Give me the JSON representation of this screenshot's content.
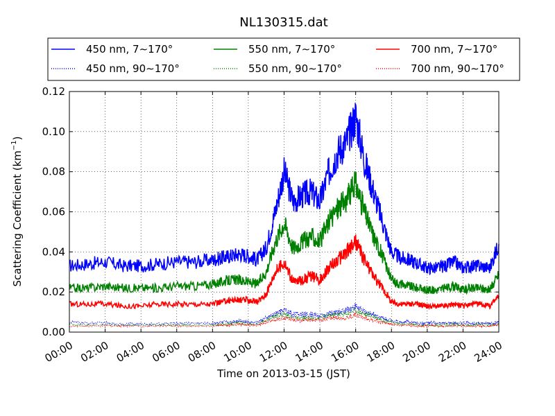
{
  "chart_data": {
    "type": "line",
    "title": "NL130315.dat",
    "xlabel": "Time on 2013-03-15 (JST)",
    "ylabel": "Scattering Coefficient (km",
    "ylabel_sup": "−1",
    "ylabel_end": ")",
    "xlim": [
      0,
      24
    ],
    "ylim": [
      0,
      0.12
    ],
    "grid": true,
    "legend_position": "top",
    "x_ticks": [
      0,
      2,
      4,
      6,
      8,
      10,
      12,
      14,
      16,
      18,
      20,
      22,
      24
    ],
    "x_tick_labels": [
      "00:00",
      "02:00",
      "04:00",
      "06:00",
      "08:00",
      "10:00",
      "12:00",
      "14:00",
      "16:00",
      "18:00",
      "20:00",
      "22:00",
      "24:00"
    ],
    "y_ticks": [
      0,
      0.02,
      0.04,
      0.06,
      0.08,
      0.1,
      0.12
    ],
    "y_tick_labels": [
      "0.00",
      "0.02",
      "0.04",
      "0.06",
      "0.08",
      "0.10",
      "0.12"
    ],
    "x": [
      0,
      1,
      2,
      3,
      4,
      5,
      6,
      7,
      8,
      8.5,
      9,
      9.5,
      10,
      10.5,
      11,
      11.5,
      12,
      12.5,
      13,
      13.5,
      14,
      14.5,
      15,
      15.5,
      16,
      16.5,
      17,
      17.5,
      18,
      18.5,
      19,
      19.5,
      20,
      20.5,
      21,
      21.5,
      22,
      22.5,
      23,
      23.5,
      24
    ],
    "series": [
      {
        "name": "450 nm, 7∼170°",
        "color": "#0000ff",
        "style": "solid",
        "values": [
          0.033,
          0.034,
          0.035,
          0.033,
          0.033,
          0.034,
          0.035,
          0.035,
          0.036,
          0.037,
          0.038,
          0.039,
          0.038,
          0.036,
          0.042,
          0.06,
          0.08,
          0.065,
          0.068,
          0.07,
          0.065,
          0.08,
          0.09,
          0.095,
          0.108,
          0.085,
          0.07,
          0.055,
          0.04,
          0.037,
          0.036,
          0.034,
          0.032,
          0.032,
          0.033,
          0.035,
          0.032,
          0.033,
          0.033,
          0.032,
          0.044
        ]
      },
      {
        "name": "450 nm, 90∼170°",
        "color": "#0000ff",
        "style": "dotted",
        "values": [
          0.005,
          0.0045,
          0.0045,
          0.004,
          0.004,
          0.004,
          0.0045,
          0.0045,
          0.0045,
          0.005,
          0.005,
          0.006,
          0.005,
          0.005,
          0.007,
          0.009,
          0.011,
          0.009,
          0.009,
          0.009,
          0.008,
          0.009,
          0.01,
          0.011,
          0.013,
          0.01,
          0.009,
          0.007,
          0.006,
          0.005,
          0.005,
          0.0045,
          0.0045,
          0.0045,
          0.0045,
          0.0045,
          0.0045,
          0.0045,
          0.0045,
          0.0045,
          0.005
        ]
      },
      {
        "name": "550 nm, 7∼170°",
        "color": "#008000",
        "style": "solid",
        "values": [
          0.022,
          0.022,
          0.023,
          0.022,
          0.022,
          0.022,
          0.023,
          0.023,
          0.024,
          0.025,
          0.026,
          0.026,
          0.025,
          0.024,
          0.03,
          0.045,
          0.055,
          0.042,
          0.045,
          0.048,
          0.045,
          0.055,
          0.062,
          0.066,
          0.074,
          0.06,
          0.048,
          0.038,
          0.026,
          0.024,
          0.023,
          0.022,
          0.021,
          0.021,
          0.022,
          0.023,
          0.021,
          0.022,
          0.022,
          0.021,
          0.029
        ]
      },
      {
        "name": "550 nm, 90∼170°",
        "color": "#008000",
        "style": "dotted",
        "values": [
          0.004,
          0.0035,
          0.0035,
          0.0035,
          0.0035,
          0.0035,
          0.0035,
          0.0035,
          0.0035,
          0.004,
          0.004,
          0.005,
          0.004,
          0.004,
          0.006,
          0.008,
          0.009,
          0.007,
          0.007,
          0.007,
          0.007,
          0.008,
          0.009,
          0.009,
          0.011,
          0.009,
          0.008,
          0.006,
          0.005,
          0.004,
          0.004,
          0.0035,
          0.0035,
          0.0035,
          0.0035,
          0.004,
          0.0035,
          0.0035,
          0.004,
          0.0035,
          0.004
        ]
      },
      {
        "name": "700 nm, 7∼170°",
        "color": "#ff0000",
        "style": "solid",
        "values": [
          0.014,
          0.014,
          0.014,
          0.013,
          0.013,
          0.014,
          0.014,
          0.014,
          0.014,
          0.015,
          0.016,
          0.016,
          0.016,
          0.015,
          0.019,
          0.03,
          0.035,
          0.025,
          0.026,
          0.028,
          0.026,
          0.032,
          0.036,
          0.04,
          0.045,
          0.036,
          0.028,
          0.022,
          0.015,
          0.014,
          0.014,
          0.014,
          0.013,
          0.013,
          0.013,
          0.014,
          0.013,
          0.014,
          0.014,
          0.013,
          0.018
        ]
      },
      {
        "name": "700 nm, 90∼170°",
        "color": "#ff0000",
        "style": "dotted",
        "values": [
          0.003,
          0.003,
          0.003,
          0.003,
          0.003,
          0.003,
          0.003,
          0.003,
          0.003,
          0.0035,
          0.0035,
          0.004,
          0.0035,
          0.0035,
          0.005,
          0.006,
          0.007,
          0.006,
          0.006,
          0.006,
          0.006,
          0.007,
          0.007,
          0.007,
          0.009,
          0.007,
          0.006,
          0.005,
          0.004,
          0.0035,
          0.0035,
          0.003,
          0.003,
          0.003,
          0.003,
          0.003,
          0.003,
          0.003,
          0.003,
          0.003,
          0.0035
        ]
      }
    ]
  }
}
